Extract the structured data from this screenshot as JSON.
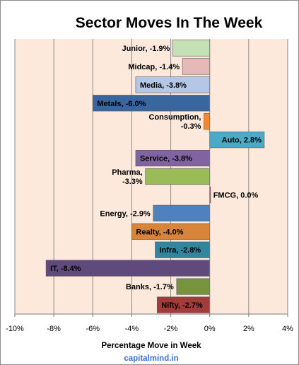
{
  "chart_data": {
    "type": "bar",
    "orientation": "horizontal",
    "title": "Sector Moves In The Week",
    "xlabel": "Percentage Move in Week",
    "ylabel": "",
    "xlim": [
      -10,
      4
    ],
    "x_ticks": [
      "-10%",
      "-8%",
      "-6%",
      "-4%",
      "-2%",
      "0%",
      "2%",
      "4%"
    ],
    "x_tick_values": [
      -10,
      -8,
      -6,
      -4,
      -2,
      0,
      2,
      4
    ],
    "grid": "vertical",
    "plot_background": "#fce9dc",
    "categories": [
      "Junior",
      "Midcap",
      "Media",
      "Metals",
      "Consumption",
      "Auto",
      "Service",
      "Pharma",
      "FMCG",
      "Energy",
      "Realty",
      "Infra",
      "IT",
      "Banks",
      "Nifty"
    ],
    "values": [
      -1.9,
      -1.4,
      -3.8,
      -6.0,
      -0.3,
      2.8,
      -3.8,
      -3.3,
      0.0,
      -2.9,
      -4.0,
      -2.8,
      -8.4,
      -1.7,
      -2.7
    ],
    "data_labels": [
      [
        "Junior, -1.9%"
      ],
      [
        "Midcap, -1.4%"
      ],
      [
        "Media, -3.8%"
      ],
      [
        "Metals, -6.0%"
      ],
      [
        "Consumption,",
        "-0.3%"
      ],
      [
        "Auto, 2.8%"
      ],
      [
        "Service, -3.8%"
      ],
      [
        "Pharma,",
        "-3.3%"
      ],
      [
        "FMCG, 0.0%"
      ],
      [
        "Energy, -2.9%"
      ],
      [
        "Realty, -4.0%"
      ],
      [
        "Infra, -2.8%"
      ],
      [
        "IT, -8.4%"
      ],
      [
        "Banks, -1.7%"
      ],
      [
        "Nifty, -2.7%"
      ]
    ],
    "colors": [
      "#c5e0b4",
      "#e6b8b7",
      "#b4c7e7",
      "#3a66a0",
      "#f08a2c",
      "#4babc6",
      "#8064a2",
      "#9bbb59",
      "#c0504d",
      "#4f81bd",
      "#d9843b",
      "#31859c",
      "#604a7b",
      "#77933c",
      "#a33b3b"
    ],
    "label_position": [
      "outside",
      "outside",
      "inside",
      "inside",
      "outside",
      "inside",
      "inside",
      "outside",
      "outside",
      "outside",
      "inside",
      "inside",
      "inside",
      "outside",
      "inside"
    ],
    "source_text": "capitalmind.in"
  }
}
